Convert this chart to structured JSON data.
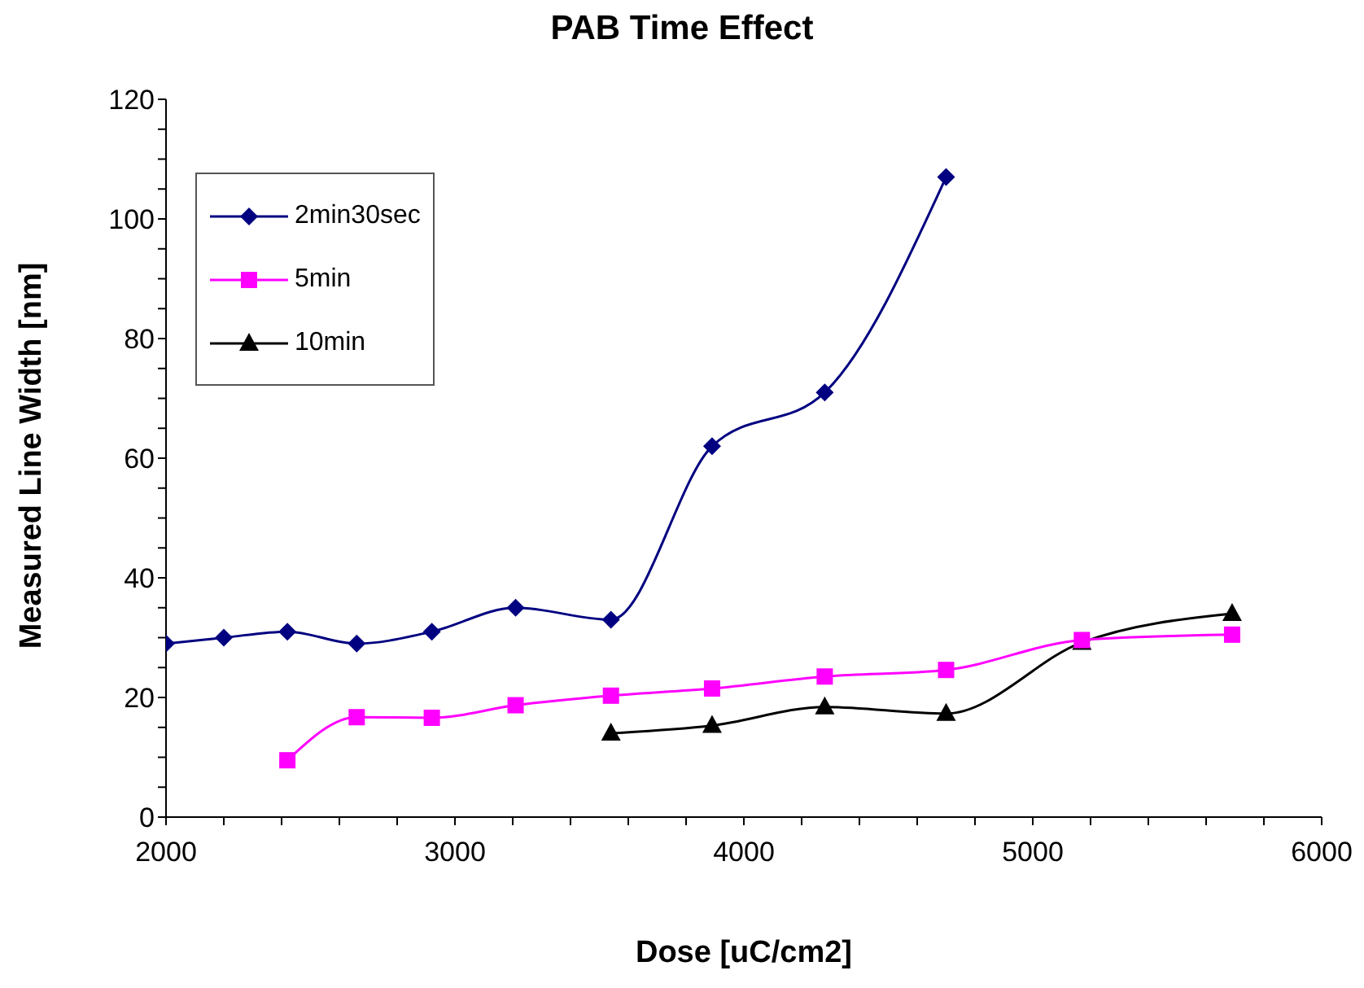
{
  "chart_data": {
    "type": "line",
    "title": "PAB Time Effect",
    "xlabel": "Dose [uC/cm2]",
    "ylabel": "Measured Line Width [nm]",
    "xlim": [
      2000,
      6000
    ],
    "ylim": [
      0,
      120
    ],
    "xticks": [
      2000,
      {
        "value": 2200,
        "label": null
      },
      {
        "value": 2400,
        "label": null
      },
      {
        "value": 2600,
        "label": null
      },
      {
        "value": 2800,
        "label": null
      },
      3000,
      {
        "value": 3200,
        "label": null
      },
      {
        "value": 3400,
        "label": null
      },
      {
        "value": 3600,
        "label": null
      },
      {
        "value": 3800,
        "label": null
      },
      4000,
      {
        "value": 4200,
        "label": null
      },
      {
        "value": 4400,
        "label": null
      },
      {
        "value": 4600,
        "label": null
      },
      {
        "value": 4800,
        "label": null
      },
      5000,
      {
        "value": 5200,
        "label": null
      },
      {
        "value": 5400,
        "label": null
      },
      {
        "value": 5600,
        "label": null
      },
      {
        "value": 5800,
        "label": null
      },
      6000
    ],
    "yticks": [
      0,
      {
        "value": 5,
        "label": null
      },
      {
        "value": 10,
        "label": null
      },
      {
        "value": 15,
        "label": null
      },
      20,
      {
        "value": 25,
        "label": null
      },
      {
        "value": 30,
        "label": null
      },
      {
        "value": 35,
        "label": null
      },
      40,
      {
        "value": 45,
        "label": null
      },
      {
        "value": 50,
        "label": null
      },
      {
        "value": 55,
        "label": null
      },
      60,
      {
        "value": 65,
        "label": null
      },
      {
        "value": 70,
        "label": null
      },
      {
        "value": 75,
        "label": null
      },
      80,
      {
        "value": 85,
        "label": null
      },
      {
        "value": 90,
        "label": null
      },
      {
        "value": 95,
        "label": null
      },
      100,
      {
        "value": 105,
        "label": null
      },
      {
        "value": 110,
        "label": null
      },
      {
        "value": 115,
        "label": null
      },
      120
    ],
    "grid": false,
    "legend": "top left",
    "line_style": "solid",
    "series": [
      {
        "name": "2min30sec",
        "color": "#000080",
        "marker": "diamond",
        "x": [
          2000,
          2200,
          2420,
          2660,
          2920,
          3210,
          3540,
          3890,
          4280,
          4700
        ],
        "values": [
          29,
          30,
          31,
          29,
          31,
          35,
          33,
          62,
          71,
          107
        ]
      },
      {
        "name": "5min",
        "color": "#ff00ff",
        "marker": "square",
        "x": [
          2420,
          2660,
          2920,
          3210,
          3540,
          3890,
          4280,
          4700,
          5170,
          5690
        ],
        "values": [
          9.5,
          16.7,
          16.6,
          18.7,
          20.3,
          21.5,
          23.5,
          24.6,
          29.6,
          30.5
        ]
      },
      {
        "name": "10min",
        "color": "#000000",
        "marker": "triangle",
        "x": [
          3540,
          3890,
          4280,
          4700,
          5170,
          5690
        ],
        "values": [
          14,
          15.3,
          18.4,
          17.3,
          29.2,
          34
        ]
      }
    ]
  }
}
